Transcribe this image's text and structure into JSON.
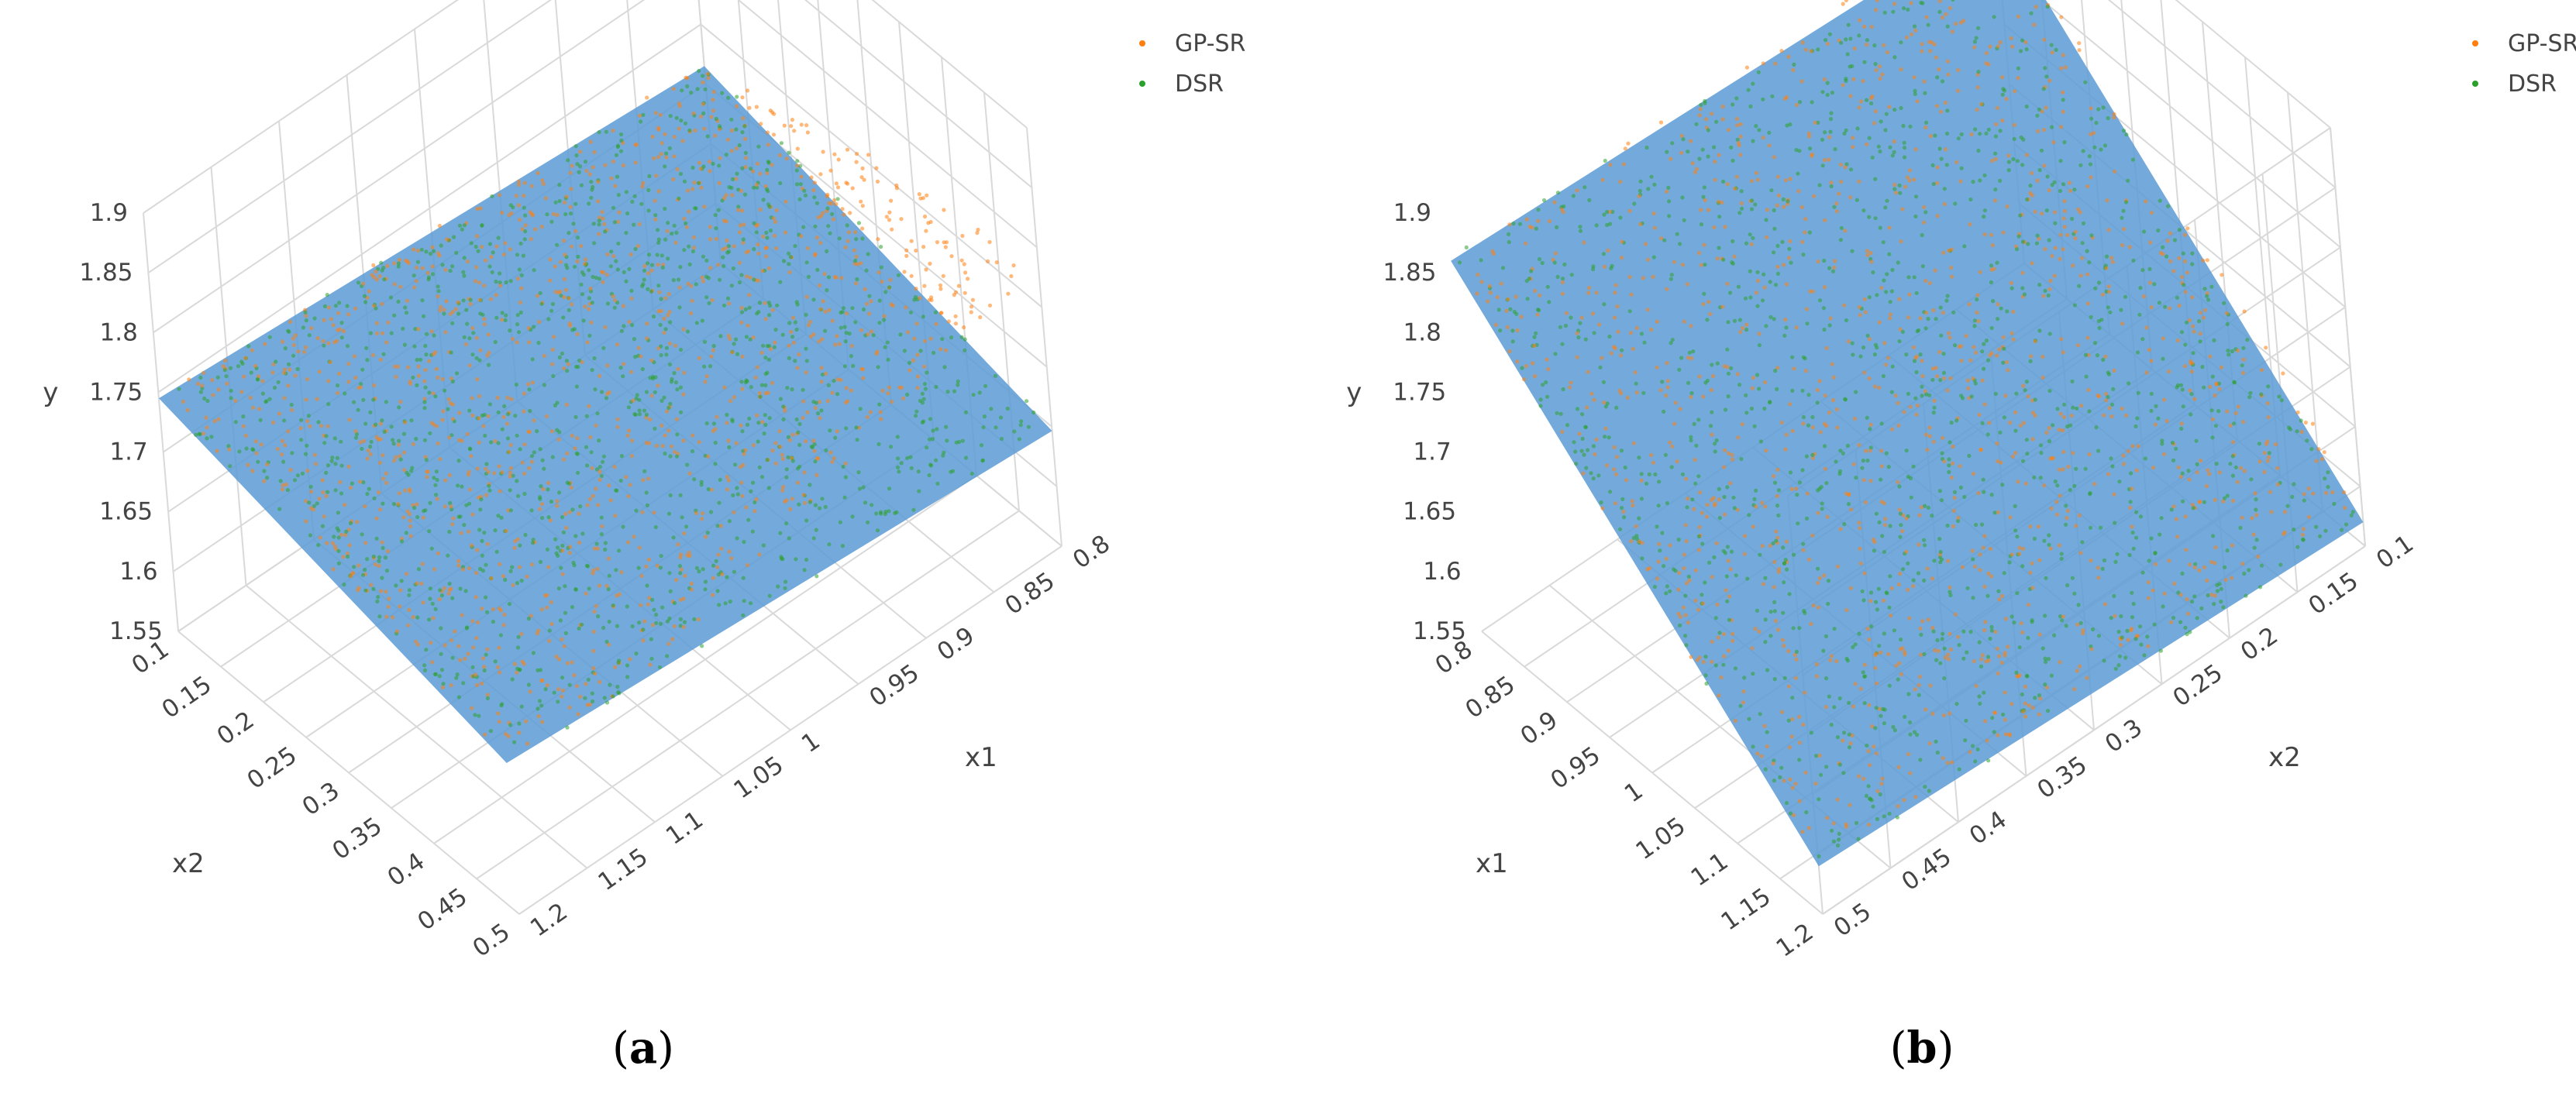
{
  "colors": {
    "gp_sr": "#ff7f0e",
    "dsr": "#2ca02c",
    "surface": "#5b9bd5",
    "grid": "#d9d9d9",
    "text": "#444444"
  },
  "chart_data": [
    {
      "type": "scatter3d",
      "caption": "a",
      "legend": [
        "GP-SR",
        "DSR"
      ],
      "axes": {
        "x1": {
          "title": "x1",
          "range": [
            0.8,
            1.2
          ],
          "ticks": [
            "0.8",
            "0.85",
            "0.9",
            "0.95",
            "1",
            "1.05",
            "1.1",
            "1.15",
            "1.2"
          ]
        },
        "x2": {
          "title": "x2",
          "range": [
            0.1,
            0.5
          ],
          "ticks": [
            "0.1",
            "0.15",
            "0.2",
            "0.25",
            "0.3",
            "0.35",
            "0.4",
            "0.45",
            "0.5"
          ]
        },
        "y": {
          "title": "y",
          "range": [
            1.55,
            1.9
          ],
          "ticks": [
            "1.55",
            "1.6",
            "1.65",
            "1.7",
            "1.75",
            "1.8",
            "1.85",
            "1.9"
          ]
        }
      },
      "series": [
        {
          "name": "GP-SR",
          "color": "#ff7f0e",
          "y_range": [
            1.66,
            1.8
          ]
        },
        {
          "name": "DSR",
          "color": "#2ca02c",
          "y_range": [
            1.66,
            1.77
          ]
        }
      ],
      "grid": true,
      "legend_position": "top-right"
    },
    {
      "type": "scatter3d",
      "caption": "b",
      "legend": [
        "GP-SR",
        "DSR"
      ],
      "axes": {
        "x1": {
          "title": "x1",
          "range": [
            0.8,
            1.2
          ],
          "ticks": [
            "0.8",
            "0.85",
            "0.9",
            "0.95",
            "1",
            "1.05",
            "1.1",
            "1.15",
            "1.2"
          ]
        },
        "x2": {
          "title": "x2",
          "range": [
            0.1,
            0.5
          ],
          "ticks": [
            "0.1",
            "0.15",
            "0.2",
            "0.25",
            "0.3",
            "0.35",
            "0.4",
            "0.45",
            "0.5"
          ]
        },
        "y": {
          "title": "y",
          "range": [
            1.55,
            1.9
          ],
          "ticks": [
            "1.55",
            "1.6",
            "1.65",
            "1.7",
            "1.75",
            "1.8",
            "1.85",
            "1.9"
          ]
        }
      },
      "series": [
        {
          "name": "GP-SR",
          "color": "#ff7f0e",
          "y_range": [
            1.58,
            1.89
          ]
        },
        {
          "name": "DSR",
          "color": "#2ca02c",
          "y_range": [
            1.58,
            1.86
          ]
        }
      ],
      "grid": true,
      "legend_position": "top-right"
    }
  ]
}
